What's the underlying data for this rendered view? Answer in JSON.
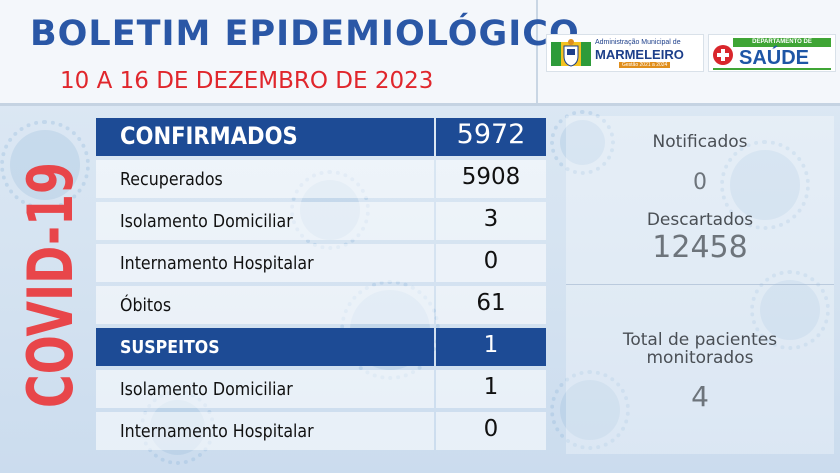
{
  "header": {
    "title": "BOLETIM EPIDEMIOLÓGICO",
    "subtitle": "10 A 16 DE DEZEMBRO DE 2023"
  },
  "logos": {
    "municipal": {
      "line1": "Administração Municipal de",
      "line2": "MARMELEIRO",
      "line3": "Gestão 2021 a 2024"
    },
    "saude": {
      "top": "DEPARTAMENTO DE",
      "word": "SAÚDE"
    }
  },
  "side_label": "COVID-19",
  "table": {
    "confirmados": {
      "label": "CONFIRMADOS",
      "value": "5972",
      "rows": [
        {
          "label": "Recuperados",
          "value": "5908"
        },
        {
          "label": "Isolamento Domiciliar",
          "value": "3"
        },
        {
          "label": "Internamento Hospitalar",
          "value": "0"
        },
        {
          "label": "Óbitos",
          "value": "61"
        }
      ]
    },
    "suspeitos": {
      "label": "SUSPEITOS",
      "value": "1",
      "rows": [
        {
          "label": "Isolamento Domiciliar",
          "value": "1"
        },
        {
          "label": "Internamento Hospitalar",
          "value": "0"
        }
      ]
    }
  },
  "panel": {
    "notificados_label": "Notificados",
    "notificados_value": "0",
    "descartados_label": "Descartados",
    "descartados_value": "12458",
    "monitorados_label_1": "Total de pacientes",
    "monitorados_label_2": "monitorados",
    "monitorados_value": "4"
  },
  "colors": {
    "title_blue": "#2a57a6",
    "subtitle_red": "#e0262c",
    "header_row_blue": "#1d4b95",
    "covid_red": "#e8464a"
  }
}
